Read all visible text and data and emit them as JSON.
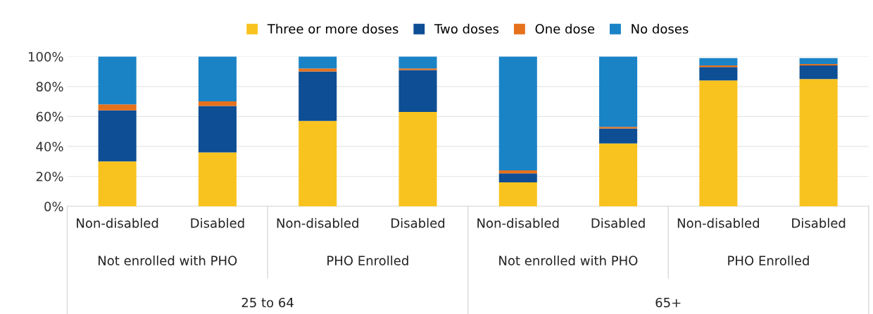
{
  "chart_data": {
    "type": "bar",
    "stacked": true,
    "categories": [
      "Non-disabled",
      "Disabled",
      "Non-disabled",
      "Disabled",
      "Non-disabled",
      "Disabled",
      "Non-disabled",
      "Disabled"
    ],
    "series": [
      {
        "name": "Three or more doses",
        "color": "#f9c31f",
        "values": [
          30,
          36,
          57,
          63,
          16,
          42,
          84,
          85
        ]
      },
      {
        "name": "Two doses",
        "color": "#0d4e94",
        "values": [
          34,
          31,
          33,
          28,
          6,
          10,
          9,
          9
        ]
      },
      {
        "name": "One dose",
        "color": "#e6711c",
        "values": [
          4,
          3,
          2,
          1,
          2,
          1,
          1,
          1
        ]
      },
      {
        "name": "No doses",
        "color": "#1a83c6",
        "values": [
          32,
          30,
          8,
          8,
          76,
          47,
          5,
          4
        ]
      }
    ],
    "ylim": [
      0,
      100
    ],
    "yticks": [
      {
        "value": 0,
        "label": "0%"
      },
      {
        "value": 20,
        "label": "20%"
      },
      {
        "value": 40,
        "label": "40%"
      },
      {
        "value": 60,
        "label": "60%"
      },
      {
        "value": 80,
        "label": "80%"
      },
      {
        "value": 100,
        "label": "100%"
      }
    ],
    "grid": "y",
    "legend": "top",
    "annotations": [
      "Not enrolled with PHO",
      "PHO Enrolled",
      "Not enrolled with PHO",
      "PHO Enrolled",
      "25 to 64",
      "65+"
    ]
  }
}
